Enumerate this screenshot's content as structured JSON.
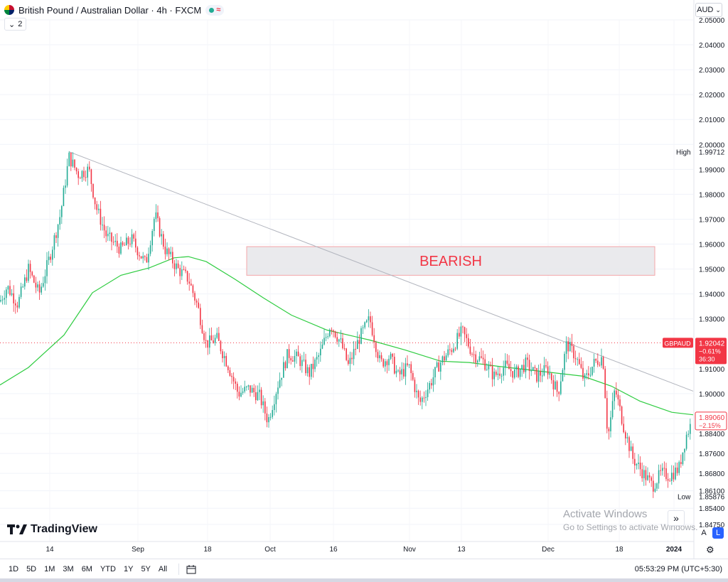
{
  "header": {
    "symbol_title": "British Pound / Australian Dollar · 4h · FXCM",
    "indicator_count": "2"
  },
  "currency_button": "AUD",
  "annotation": {
    "bearish_label": "BEARISH"
  },
  "price_axis": {
    "ticks": [
      "2.05000",
      "2.04000",
      "2.03000",
      "2.02000",
      "2.01000",
      "2.00000",
      "1.99000",
      "1.98000",
      "1.97000",
      "1.96000",
      "1.95000",
      "1.94000",
      "1.93000",
      "1.91000",
      "1.90000",
      "1.89000",
      "1.88400",
      "1.87600",
      "1.86800",
      "1.86100",
      "1.85400",
      "1.84750"
    ],
    "high_label": "High",
    "high_value": "1.99712",
    "low_label": "Low",
    "low_value": "1.85876",
    "last_symbol": "GBPAUD",
    "last_price": "1.92042",
    "last_change": "−0.61%",
    "countdown": "36:30",
    "current_price": "1.89060",
    "current_change": "−2.15%"
  },
  "time_axis": [
    "14",
    "Sep",
    "18",
    "Oct",
    "16",
    "Nov",
    "13",
    "Dec",
    "18",
    "2024"
  ],
  "logo_text": "TradingView",
  "watermark": {
    "line1": "Activate Windows",
    "line2": "Go to Settings to activate Windows."
  },
  "corner_buttons": {
    "auto": "A",
    "log": "L"
  },
  "bottom_bar": {
    "ranges": [
      "1D",
      "5D",
      "1M",
      "3M",
      "6M",
      "YTD",
      "1Y",
      "5Y",
      "All"
    ],
    "clock": "05:53:29 PM (UTC+5:30)"
  },
  "colors": {
    "up": "#22ab94",
    "down": "#f23645",
    "ma": "#2ecc40",
    "trendline": "#b2b5be",
    "box": "#e6e6ea"
  },
  "chart_data": {
    "type": "candlestick",
    "ylim": [
      1.8475,
      2.05
    ],
    "ma_approx": [
      [
        0,
        1.9035
      ],
      [
        40,
        1.9105
      ],
      [
        90,
        1.9235
      ],
      [
        130,
        1.9405
      ],
      [
        170,
        1.9475
      ],
      [
        210,
        1.9505
      ],
      [
        245,
        1.9545
      ],
      [
        265,
        1.955
      ],
      [
        290,
        1.953
      ],
      [
        330,
        1.946
      ],
      [
        370,
        1.9385
      ],
      [
        410,
        1.9315
      ],
      [
        460,
        1.9255
      ],
      [
        520,
        1.9215
      ],
      [
        570,
        1.9175
      ],
      [
        620,
        1.913
      ],
      [
        660,
        1.9125
      ],
      [
        700,
        1.911
      ],
      [
        760,
        1.909
      ],
      [
        820,
        1.907
      ],
      [
        860,
        1.903
      ],
      [
        900,
        1.897
      ],
      [
        945,
        1.8925
      ],
      [
        975,
        1.8915
      ]
    ],
    "trendline": [
      [
        97,
        1.9971
      ],
      [
        975,
        1.901
      ]
    ],
    "bearish_zone": {
      "y1": 1.959,
      "y2": 1.9475
    },
    "close_path": [
      [
        0,
        1.937
      ],
      [
        10,
        1.943
      ],
      [
        25,
        1.936
      ],
      [
        40,
        1.95
      ],
      [
        55,
        1.94
      ],
      [
        70,
        1.955
      ],
      [
        85,
        1.972
      ],
      [
        97,
        1.995
      ],
      [
        110,
        1.988
      ],
      [
        125,
        1.99
      ],
      [
        135,
        1.975
      ],
      [
        150,
        1.963
      ],
      [
        170,
        1.958
      ],
      [
        185,
        1.962
      ],
      [
        205,
        1.952
      ],
      [
        218,
        1.972
      ],
      [
        232,
        1.958
      ],
      [
        250,
        1.95
      ],
      [
        265,
        1.946
      ],
      [
        278,
        1.935
      ],
      [
        290,
        1.92
      ],
      [
        305,
        1.922
      ],
      [
        320,
        1.912
      ],
      [
        335,
        1.9
      ],
      [
        350,
        1.902
      ],
      [
        365,
        1.899
      ],
      [
        377,
        1.889
      ],
      [
        390,
        1.903
      ],
      [
        405,
        1.916
      ],
      [
        420,
        1.914
      ],
      [
        435,
        1.908
      ],
      [
        450,
        1.916
      ],
      [
        465,
        1.928
      ],
      [
        480,
        1.92
      ],
      [
        490,
        1.911
      ],
      [
        505,
        1.922
      ],
      [
        520,
        1.93
      ],
      [
        535,
        1.912
      ],
      [
        548,
        1.915
      ],
      [
        560,
        1.907
      ],
      [
        575,
        1.911
      ],
      [
        590,
        1.896
      ],
      [
        605,
        1.904
      ],
      [
        618,
        1.912
      ],
      [
        635,
        1.918
      ],
      [
        650,
        1.925
      ],
      [
        665,
        1.916
      ],
      [
        680,
        1.913
      ],
      [
        695,
        1.907
      ],
      [
        710,
        1.911
      ],
      [
        725,
        1.908
      ],
      [
        740,
        1.912
      ],
      [
        755,
        1.907
      ],
      [
        770,
        1.91
      ],
      [
        785,
        1.9
      ],
      [
        797,
        1.92
      ],
      [
        810,
        1.915
      ],
      [
        822,
        1.905
      ],
      [
        835,
        1.912
      ],
      [
        848,
        1.915
      ],
      [
        855,
        1.882
      ],
      [
        865,
        1.902
      ],
      [
        878,
        1.886
      ],
      [
        890,
        1.874
      ],
      [
        905,
        1.868
      ],
      [
        918,
        1.863
      ],
      [
        930,
        1.868
      ],
      [
        942,
        1.867
      ],
      [
        955,
        1.87
      ],
      [
        965,
        1.883
      ],
      [
        975,
        1.89
      ]
    ]
  }
}
